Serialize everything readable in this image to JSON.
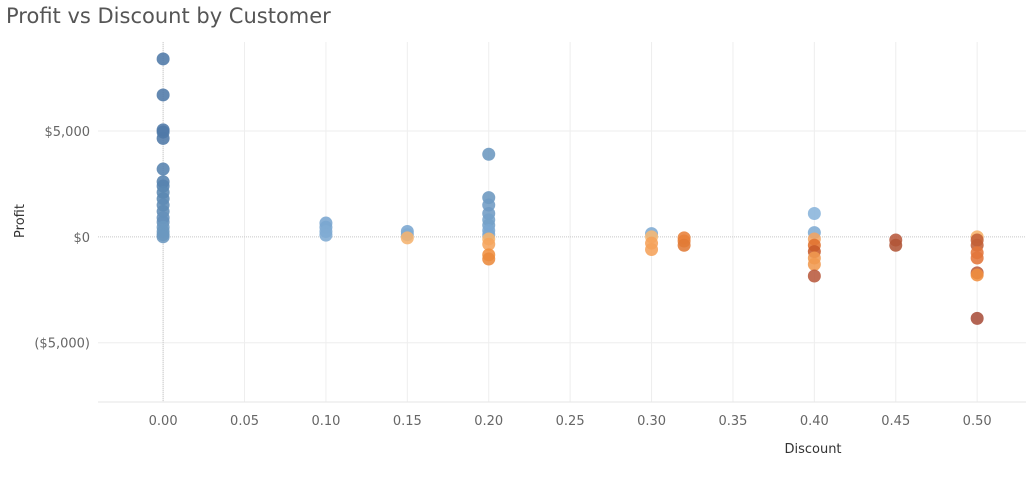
{
  "chart_data": {
    "type": "scatter",
    "title": "Profit vs Discount by Customer",
    "xlabel": "Discount",
    "ylabel": "Profit",
    "xlim": [
      -0.04,
      0.53
    ],
    "ylim": [
      -7800,
      9200
    ],
    "x_ticks": [
      0.0,
      0.05,
      0.1,
      0.15,
      0.2,
      0.25,
      0.3,
      0.35,
      0.4,
      0.45,
      0.5
    ],
    "x_tick_labels": [
      "0.00",
      "0.05",
      "0.10",
      "0.15",
      "0.20",
      "0.25",
      "0.30",
      "0.35",
      "0.40",
      "0.45",
      "0.50"
    ],
    "y_ticks": [
      5000,
      0,
      -5000
    ],
    "y_tick_labels": [
      "$5,000",
      "$0",
      "($5,000)"
    ],
    "grid": true,
    "color_scale": "diverging blue-orange by profit",
    "points": [
      {
        "x": 0.0,
        "y": 8400,
        "color": "#4e79a7"
      },
      {
        "x": 0.0,
        "y": 6700,
        "color": "#4e79a7"
      },
      {
        "x": 0.0,
        "y": 5050,
        "color": "#4e79a7"
      },
      {
        "x": 0.0,
        "y": 4950,
        "color": "#4e79a7"
      },
      {
        "x": 0.0,
        "y": 4650,
        "color": "#4e79a7"
      },
      {
        "x": 0.0,
        "y": 3200,
        "color": "#5582ae"
      },
      {
        "x": 0.0,
        "y": 2600,
        "color": "#5582ae"
      },
      {
        "x": 0.0,
        "y": 2400,
        "color": "#5582ae"
      },
      {
        "x": 0.0,
        "y": 2100,
        "color": "#5a87b2"
      },
      {
        "x": 0.0,
        "y": 1800,
        "color": "#5a87b2"
      },
      {
        "x": 0.0,
        "y": 1500,
        "color": "#5e8bb5"
      },
      {
        "x": 0.0,
        "y": 1200,
        "color": "#5e8bb5"
      },
      {
        "x": 0.0,
        "y": 900,
        "color": "#6490ba"
      },
      {
        "x": 0.0,
        "y": 700,
        "color": "#6490ba"
      },
      {
        "x": 0.0,
        "y": 450,
        "color": "#6b97bf"
      },
      {
        "x": 0.0,
        "y": 250,
        "color": "#6b97bf"
      },
      {
        "x": 0.0,
        "y": 100,
        "color": "#6b97bf"
      },
      {
        "x": 0.0,
        "y": 0,
        "color": "#6b97bf"
      },
      {
        "x": 0.1,
        "y": 650,
        "color": "#7aa6d0"
      },
      {
        "x": 0.1,
        "y": 450,
        "color": "#7aa6d0"
      },
      {
        "x": 0.1,
        "y": 250,
        "color": "#80abd3"
      },
      {
        "x": 0.1,
        "y": 80,
        "color": "#80abd3"
      },
      {
        "x": 0.15,
        "y": 250,
        "color": "#7aa6d0"
      },
      {
        "x": 0.15,
        "y": 100,
        "color": "#80abd3"
      },
      {
        "x": 0.15,
        "y": -50,
        "color": "#f5b36e"
      },
      {
        "x": 0.2,
        "y": 3900,
        "color": "#6b97bf"
      },
      {
        "x": 0.2,
        "y": 1850,
        "color": "#6b97bf"
      },
      {
        "x": 0.2,
        "y": 1500,
        "color": "#6f9bc4"
      },
      {
        "x": 0.2,
        "y": 1100,
        "color": "#6f9bc4"
      },
      {
        "x": 0.2,
        "y": 800,
        "color": "#74a0c8"
      },
      {
        "x": 0.2,
        "y": 550,
        "color": "#74a0c8"
      },
      {
        "x": 0.2,
        "y": 300,
        "color": "#7aa6d0"
      },
      {
        "x": 0.2,
        "y": 100,
        "color": "#7aa6d0"
      },
      {
        "x": 0.2,
        "y": -100,
        "color": "#f7b36a"
      },
      {
        "x": 0.2,
        "y": -350,
        "color": "#f5a45c"
      },
      {
        "x": 0.2,
        "y": -850,
        "color": "#f0903f"
      },
      {
        "x": 0.2,
        "y": -1050,
        "color": "#ea8a3c"
      },
      {
        "x": 0.3,
        "y": 150,
        "color": "#80abd3"
      },
      {
        "x": 0.3,
        "y": 0,
        "color": "#f7b872"
      },
      {
        "x": 0.3,
        "y": -300,
        "color": "#f5a25a"
      },
      {
        "x": 0.3,
        "y": -600,
        "color": "#f5a25a"
      },
      {
        "x": 0.32,
        "y": -50,
        "color": "#e8813a"
      },
      {
        "x": 0.32,
        "y": -200,
        "color": "#e8813a"
      },
      {
        "x": 0.32,
        "y": -400,
        "color": "#e07a35"
      },
      {
        "x": 0.4,
        "y": 1100,
        "color": "#89b4db"
      },
      {
        "x": 0.4,
        "y": 200,
        "color": "#80abd3"
      },
      {
        "x": 0.4,
        "y": -100,
        "color": "#f2a462"
      },
      {
        "x": 0.4,
        "y": -400,
        "color": "#e0712e"
      },
      {
        "x": 0.4,
        "y": -700,
        "color": "#c75a2a"
      },
      {
        "x": 0.4,
        "y": -1000,
        "color": "#f09a50"
      },
      {
        "x": 0.4,
        "y": -1300,
        "color": "#f09a50"
      },
      {
        "x": 0.4,
        "y": -1850,
        "color": "#b85a3e"
      },
      {
        "x": 0.45,
        "y": -150,
        "color": "#b85a3e"
      },
      {
        "x": 0.45,
        "y": -400,
        "color": "#b05537"
      },
      {
        "x": 0.5,
        "y": 0,
        "color": "#f7b36a"
      },
      {
        "x": 0.5,
        "y": -150,
        "color": "#c26037"
      },
      {
        "x": 0.5,
        "y": -400,
        "color": "#c26037"
      },
      {
        "x": 0.5,
        "y": -750,
        "color": "#e2753a"
      },
      {
        "x": 0.5,
        "y": -1000,
        "color": "#e2753a"
      },
      {
        "x": 0.5,
        "y": -1700,
        "color": "#b85a3e"
      },
      {
        "x": 0.5,
        "y": -1800,
        "color": "#f0903f"
      },
      {
        "x": 0.5,
        "y": -3850,
        "color": "#a94f3b"
      }
    ]
  }
}
